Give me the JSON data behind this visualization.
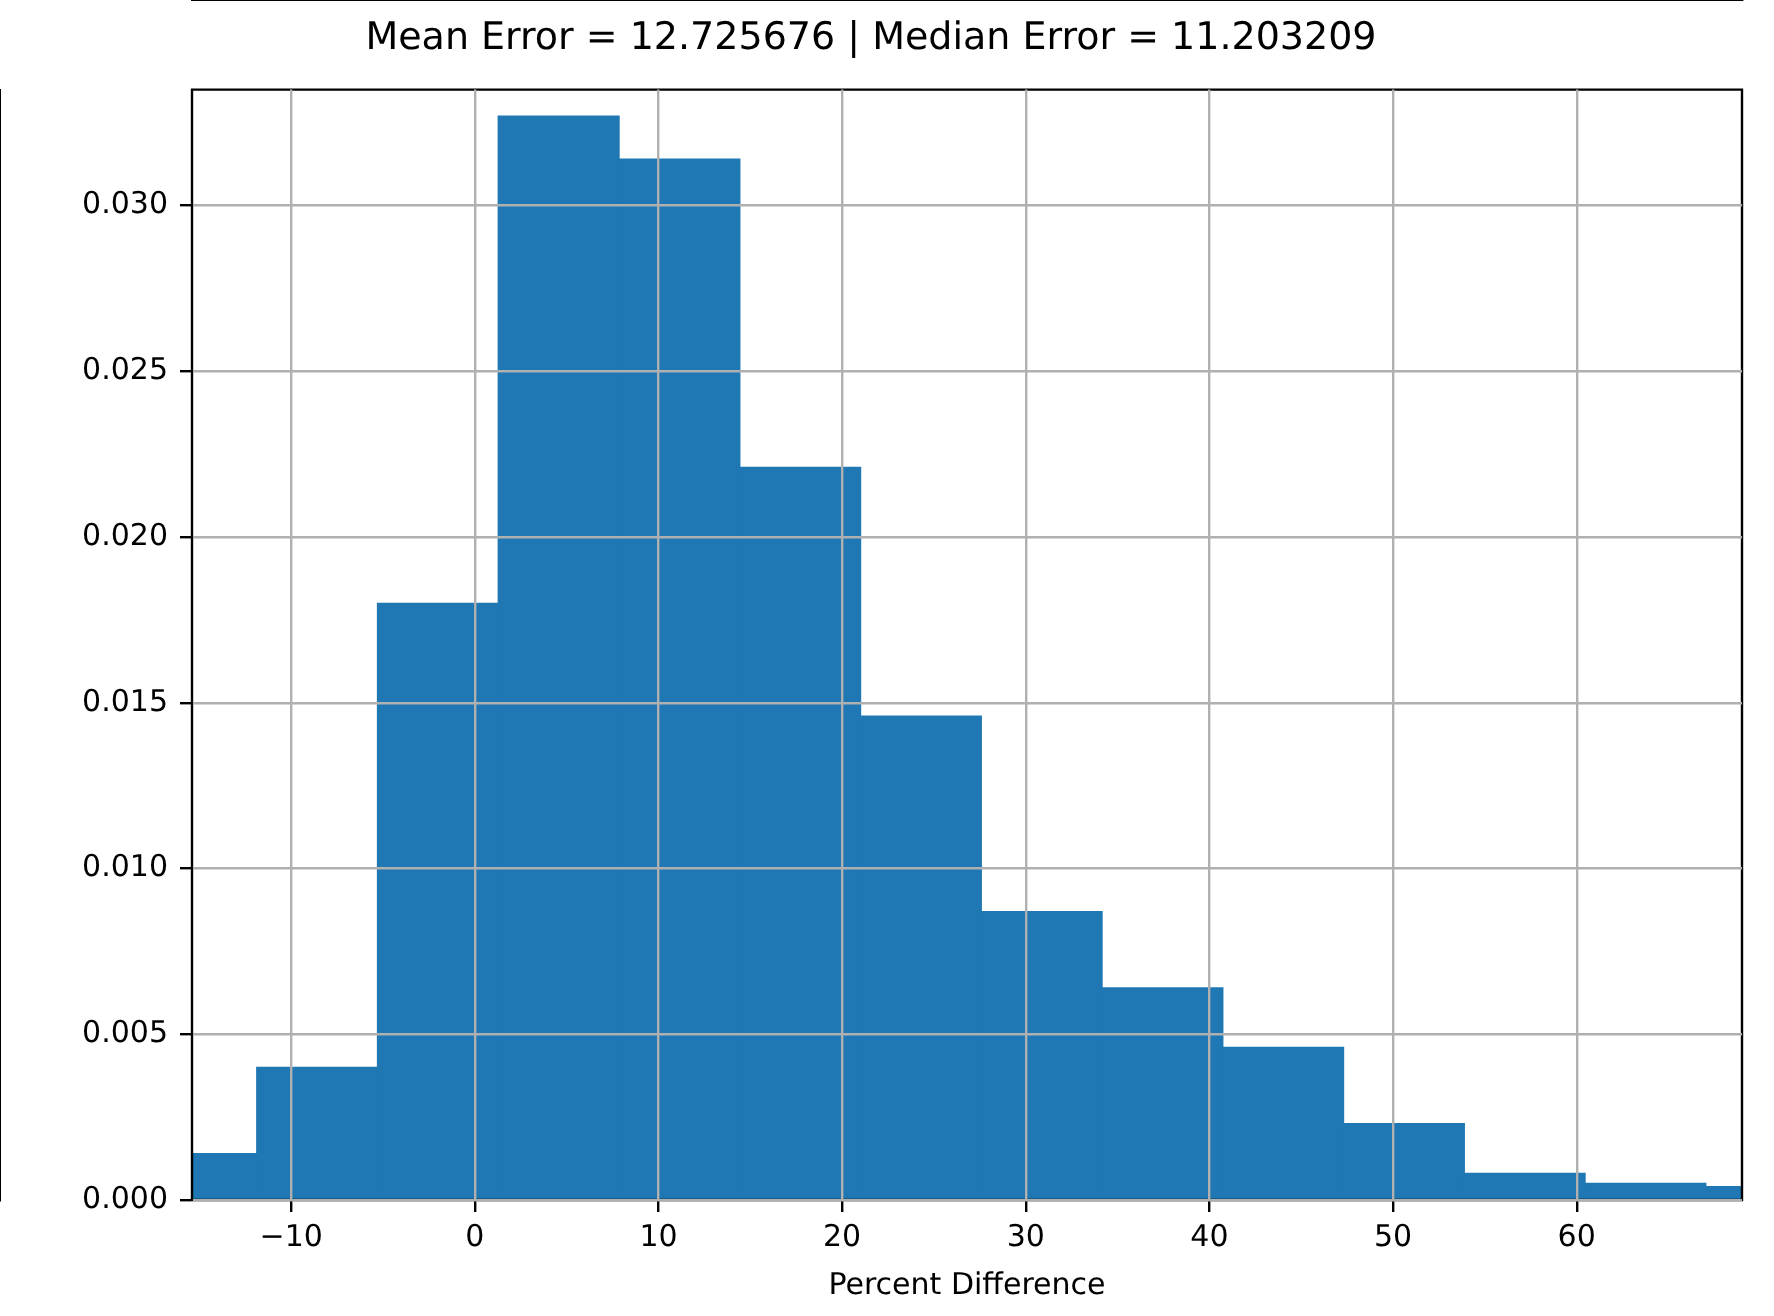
{
  "chart_data": {
    "type": "histogram",
    "title": "Mean Error = 12.725676 | Median Error = 11.203209",
    "xlabel": "Percent Difference",
    "bins": [
      -18.45,
      -11.87,
      -5.3,
      1.28,
      7.85,
      14.43,
      21.0,
      27.58,
      34.15,
      40.73,
      47.3,
      53.88,
      60.45,
      67.03,
      73.6
    ],
    "values": [
      0.0014,
      0.004,
      0.018,
      0.0327,
      0.0314,
      0.0221,
      0.0146,
      0.0087,
      0.0064,
      0.0046,
      0.0023,
      0.0008,
      0.0005,
      0.0004
    ],
    "color": "#1f77b4",
    "xlim": [
      -15.4,
      69.0
    ],
    "ylim": [
      0,
      0.0335
    ],
    "xticks": [
      {
        "value": -10,
        "label": "−10"
      },
      0,
      10,
      20,
      30,
      40,
      50,
      60
    ],
    "yticks": [
      {
        "value": 0,
        "label": "0.000"
      },
      {
        "value": 0.005,
        "label": "0.005"
      },
      {
        "value": 0.01,
        "label": "0.010"
      },
      {
        "value": 0.015,
        "label": "0.015"
      },
      {
        "value": 0.02,
        "label": "0.020"
      },
      {
        "value": 0.025,
        "label": "0.025"
      },
      {
        "value": 0.03,
        "label": "0.030"
      }
    ],
    "grid": true
  }
}
